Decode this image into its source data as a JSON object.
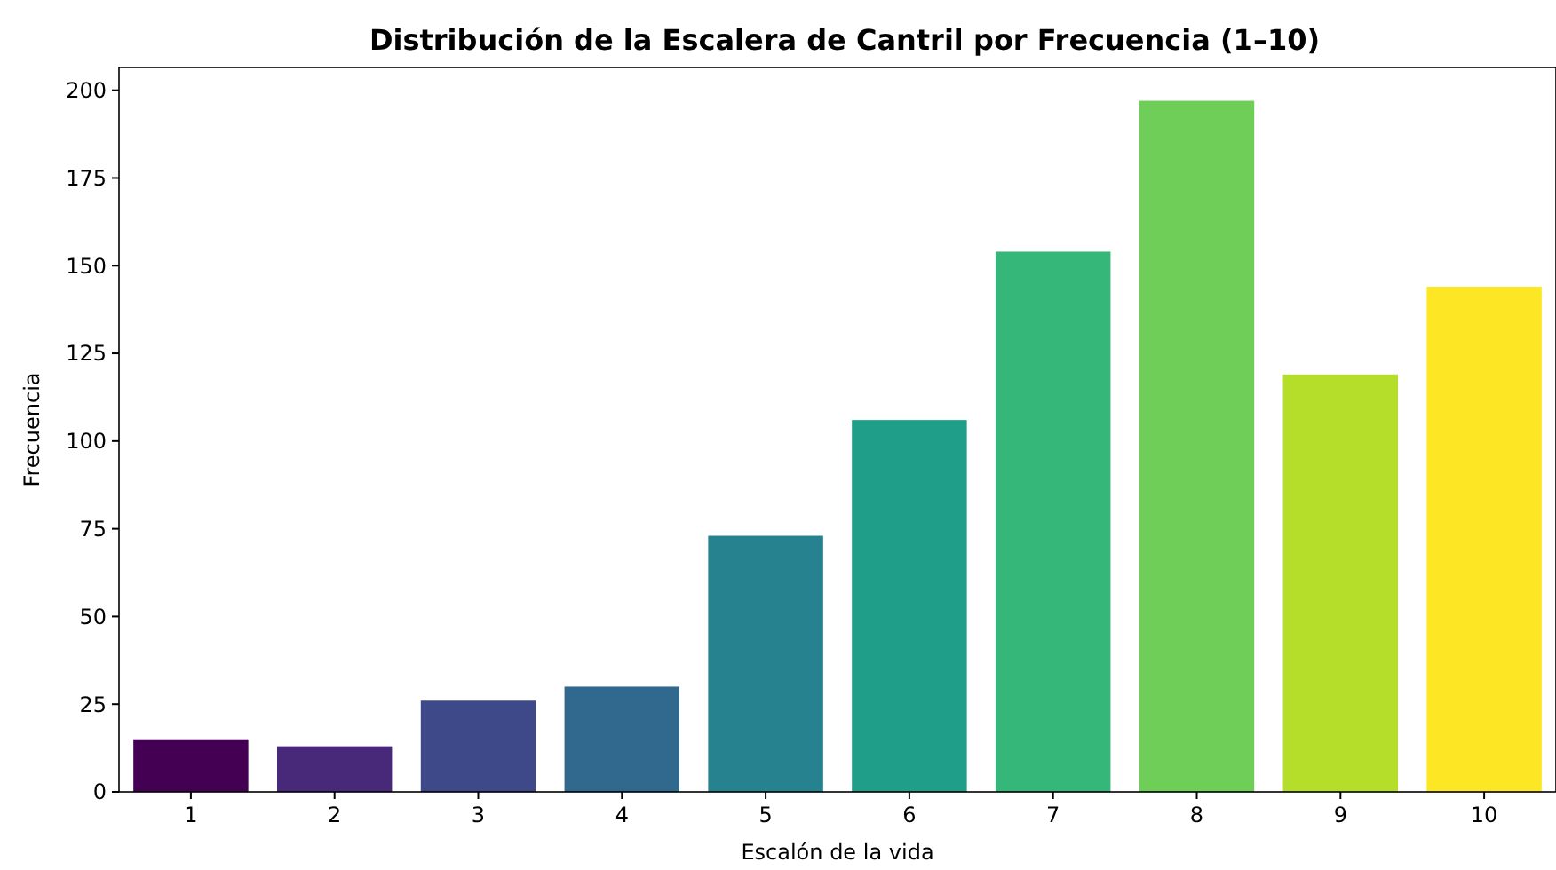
{
  "chart_data": {
    "type": "bar",
    "title": "Distribución de la Escalera de Cantril por Frecuencia (1–10)",
    "xlabel": "Escalón de la vida",
    "ylabel": "Frecuencia",
    "categories": [
      "1",
      "2",
      "3",
      "4",
      "5",
      "6",
      "7",
      "8",
      "9",
      "10"
    ],
    "values": [
      15,
      13,
      26,
      30,
      73,
      106,
      154,
      197,
      119,
      144
    ],
    "colors": [
      "#440154",
      "#482878",
      "#3e4989",
      "#31688e",
      "#26828e",
      "#1f9e89",
      "#35b779",
      "#6ece58",
      "#b5de2b",
      "#fde725"
    ],
    "ylim": [
      0,
      206.5
    ],
    "yticks": [
      0,
      25,
      50,
      75,
      100,
      125,
      150,
      175,
      200
    ],
    "grid": false
  }
}
